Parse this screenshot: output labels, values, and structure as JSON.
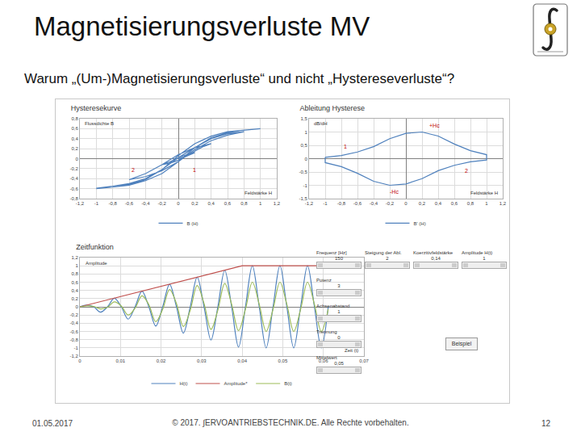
{
  "slide": {
    "title": "Magnetisierungsverluste MV",
    "question": "Warum „(Um-)Magnetisierungsverluste“ und nicht „Hystereseverluste“?",
    "date": "01.05.2017",
    "footer": "© 2017. ∫ERVOANTRIEBSTECHNIK.DE. Alle Rechte vorbehalten.",
    "page": "12"
  },
  "controls": [
    {
      "label": "Frequenz [Hz]",
      "value": "150"
    },
    {
      "label": "Steigung der Abl.",
      "value": "2"
    },
    {
      "label": "Koerzitivfeldstärke",
      "value": "0,14"
    },
    {
      "label": "Amplitude H(t)",
      "value": "1"
    },
    {
      "label": "Potenz",
      "value": "3"
    },
    {
      "label": "Achsenabstand",
      "value": "1"
    },
    {
      "label": "Trennung",
      "value": "0"
    },
    {
      "label": "Mittelwert",
      "value": "0,05"
    }
  ],
  "button": "Beispiel",
  "chart_data": [
    {
      "type": "line",
      "title": "Hysteresekurve",
      "xlabel": "Feldstärke H",
      "ylabel": "Flussdichte B",
      "xlim": [
        -1.2,
        1.2
      ],
      "xticks": [
        {
          "value": -1.2,
          "label": "-1,2"
        },
        -1,
        {
          "value": -0.8,
          "label": "-0,8"
        },
        {
          "value": -0.6,
          "label": "-0,6"
        },
        {
          "value": -0.4,
          "label": "-0,4"
        },
        {
          "value": -0.2,
          "label": "-0,2"
        },
        0,
        {
          "value": 0.2,
          "label": "0,2"
        },
        {
          "value": 0.4,
          "label": "0,4"
        },
        {
          "value": 0.6,
          "label": "0,6"
        },
        {
          "value": 0.8,
          "label": "0,8"
        },
        1,
        {
          "value": 1.2,
          "label": "1,2"
        }
      ],
      "ylim": [
        -0.8,
        0.8
      ],
      "yticks": [
        {
          "value": -0.8,
          "label": "-0,8"
        },
        {
          "value": -0.6,
          "label": "-0,6"
        },
        {
          "value": -0.4,
          "label": "-0,4"
        },
        {
          "value": -0.2,
          "label": "-0,2"
        },
        0,
        {
          "value": 0.2,
          "label": "0,2"
        },
        {
          "value": 0.4,
          "label": "0,4"
        },
        {
          "value": 0.6,
          "label": "0,6"
        },
        {
          "value": 0.8,
          "label": "0,8"
        }
      ],
      "grid": true,
      "legend": "bottom",
      "series": [
        {
          "name": "B (H)",
          "color": "#4f81bd",
          "x": [
            0,
            0.1,
            0.2,
            0.1,
            0,
            -0.1,
            -0.2,
            -0.1,
            0,
            0.1,
            0.2,
            0.3,
            0.4,
            0.2,
            0,
            -0.2,
            -0.4,
            -0.6,
            -0.4,
            -0.2,
            0,
            0.2,
            0.4,
            0.6,
            0.8,
            0.6,
            0.4,
            0.2,
            0,
            -0.2,
            -0.4,
            -0.6,
            -0.8,
            -1,
            -0.8,
            -0.6,
            -0.4,
            -0.2,
            0,
            0.2,
            0.4,
            0.6,
            0.8,
            1,
            0.8,
            0.6,
            0.4,
            0.2,
            0,
            -0.2,
            -0.4,
            -0.6,
            -0.8,
            -1
          ],
          "values": [
            0,
            0.05,
            0.12,
            0.08,
            0.02,
            -0.06,
            -0.12,
            -0.09,
            -0.03,
            0.05,
            0.15,
            0.24,
            0.3,
            0.22,
            0.08,
            -0.12,
            -0.3,
            -0.42,
            -0.36,
            -0.24,
            -0.06,
            0.18,
            0.36,
            0.47,
            0.54,
            0.5,
            0.4,
            0.22,
            0.02,
            -0.22,
            -0.4,
            -0.5,
            -0.55,
            -0.59,
            -0.57,
            -0.53,
            -0.44,
            -0.3,
            -0.06,
            0.22,
            0.42,
            0.52,
            0.57,
            0.6,
            0.58,
            0.54,
            0.45,
            0.3,
            0.06,
            -0.22,
            -0.42,
            -0.52,
            -0.57,
            -0.6
          ]
        }
      ],
      "annotations": [
        {
          "x": -0.55,
          "y": -0.22,
          "text": "2",
          "color": "#c00000"
        },
        {
          "x": 0.2,
          "y": -0.22,
          "text": "1",
          "color": "#c00000"
        }
      ]
    },
    {
      "type": "line",
      "title": "Ableitung Hysterese",
      "xlabel": "Feldstärke H",
      "ylabel": "dB/dH",
      "xlim": [
        -1.2,
        1.2
      ],
      "xticks": [
        {
          "value": -1.2,
          "label": "-1,2"
        },
        -1,
        {
          "value": -0.8,
          "label": "-0,8"
        },
        {
          "value": -0.6,
          "label": "-0,6"
        },
        {
          "value": -0.4,
          "label": "-0,4"
        },
        {
          "value": -0.2,
          "label": "-0,2"
        },
        0,
        {
          "value": 0.2,
          "label": "0,2"
        },
        {
          "value": 0.4,
          "label": "0,4"
        },
        {
          "value": 0.6,
          "label": "0,6"
        },
        {
          "value": 0.8,
          "label": "0,8"
        },
        1,
        {
          "value": 1.2,
          "label": "1,2"
        }
      ],
      "ylim": [
        -1.5,
        1.5
      ],
      "yticks": [
        {
          "value": -1.5,
          "label": "-1,5"
        },
        -1,
        {
          "value": -0.5,
          "label": "-0,5"
        },
        0,
        {
          "value": 0.5,
          "label": "0,5"
        },
        1,
        {
          "value": 1.5,
          "label": "1,5"
        }
      ],
      "grid": true,
      "legend": "bottom",
      "series": [
        {
          "name": "B' (H)",
          "color": "#4f81bd",
          "x": [
            -1,
            -0.8,
            -0.6,
            -0.4,
            -0.2,
            0,
            0.2,
            0.4,
            0.6,
            0.8,
            1,
            1,
            1,
            0.8,
            0.6,
            0.4,
            0.2,
            0,
            -0.2,
            -0.4,
            -0.6,
            -0.8,
            -1,
            -1
          ],
          "values": [
            0.05,
            0.12,
            0.25,
            0.45,
            0.75,
            0.95,
            1,
            0.85,
            0.55,
            0.3,
            0.15,
            0,
            -0.05,
            -0.12,
            -0.25,
            -0.45,
            -0.75,
            -0.95,
            -1,
            -0.85,
            -0.55,
            -0.3,
            -0.15,
            0.05
          ]
        }
      ],
      "annotations": [
        {
          "x": -0.75,
          "y": 0.45,
          "text": "1",
          "color": "#c00000"
        },
        {
          "x": 0.75,
          "y": -0.45,
          "text": "2",
          "color": "#c00000"
        },
        {
          "x": 0.35,
          "y": 1.25,
          "text": "+Hc",
          "color": "#c00000"
        },
        {
          "x": -0.15,
          "y": -1.25,
          "text": "-Hc",
          "color": "#c00000"
        }
      ]
    },
    {
      "type": "line",
      "title": "Zeitfunktion",
      "xlabel": "Zeit (t)",
      "ylabel": "Amplitude",
      "xlim": [
        0,
        0.07
      ],
      "xticks": [
        0,
        {
          "value": 0.01,
          "label": "0,01"
        },
        {
          "value": 0.02,
          "label": "0,02"
        },
        {
          "value": 0.03,
          "label": "0,03"
        },
        {
          "value": 0.04,
          "label": "0,04"
        },
        {
          "value": 0.05,
          "label": "0,05"
        },
        {
          "value": 0.06,
          "label": "0,06"
        },
        {
          "value": 0.07,
          "label": "0,07"
        }
      ],
      "ylim": [
        -1.2,
        1.2
      ],
      "yticks": [
        {
          "value": -1.2,
          "label": "-1,2"
        },
        -1,
        {
          "value": -0.8,
          "label": "-0,8"
        },
        {
          "value": -0.6,
          "label": "-0,6"
        },
        {
          "value": -0.4,
          "label": "-0,4"
        },
        {
          "value": -0.2,
          "label": "-0,2"
        },
        0,
        {
          "value": 0.2,
          "label": "0,2"
        },
        {
          "value": 0.4,
          "label": "0,4"
        },
        {
          "value": 0.6,
          "label": "0,6"
        },
        {
          "value": 0.8,
          "label": "0,8"
        },
        1,
        {
          "value": 1.2,
          "label": "1,2"
        }
      ],
      "grid": true,
      "legend": "bottom",
      "series": [
        {
          "name": "H(t)",
          "color": "#4f81bd",
          "line_style": "smooth",
          "x": [
            0,
            0.0017,
            0.0034,
            0.0051,
            0.0068,
            0.0085,
            0.0102,
            0.0119,
            0.0136,
            0.0153,
            0.017,
            0.0187,
            0.0204,
            0.0221,
            0.0238,
            0.0255,
            0.0272,
            0.0289,
            0.0306,
            0.0323,
            0.034,
            0.0357,
            0.0374,
            0.0391,
            0.0408,
            0.0425,
            0.0442,
            0.0459,
            0.0476,
            0.0493,
            0.051,
            0.0527,
            0.0544,
            0.0561,
            0.0578,
            0.0595,
            0.0612
          ],
          "values": [
            0,
            0.04,
            0,
            -0.13,
            0,
            0.21,
            0,
            -0.3,
            0,
            0.38,
            0,
            -0.47,
            0,
            0.55,
            0,
            -0.64,
            0,
            0.72,
            0,
            -0.81,
            0,
            0.89,
            0,
            -0.98,
            0,
            1,
            0,
            -1,
            0,
            1,
            0,
            -1,
            0,
            1,
            0,
            -1,
            0
          ]
        },
        {
          "name": "Amplitude*",
          "color": "#c0504d",
          "line_style": "solid",
          "x": [
            0,
            0.04,
            0.06
          ],
          "values": [
            0,
            1,
            1
          ]
        },
        {
          "name": "B(t)",
          "color": "#9bbb59",
          "line_style": "smooth",
          "x": [
            0,
            0.0017,
            0.0034,
            0.0051,
            0.0068,
            0.0085,
            0.0102,
            0.0119,
            0.0136,
            0.0153,
            0.017,
            0.0187,
            0.0204,
            0.0221,
            0.0238,
            0.0255,
            0.0272,
            0.0289,
            0.0306,
            0.0323,
            0.034,
            0.0357,
            0.0374,
            0.0391,
            0.0408,
            0.0425,
            0.0442,
            0.0459,
            0.0476,
            0.0493,
            0.051,
            0.0527,
            0.0544,
            0.0561,
            0.0578,
            0.0595,
            0.0612
          ],
          "values": [
            0,
            0.02,
            0.01,
            -0.05,
            -0.01,
            0.12,
            0.02,
            -0.2,
            -0.03,
            0.27,
            0.05,
            -0.36,
            -0.06,
            0.42,
            0.08,
            -0.48,
            -0.08,
            0.52,
            0.08,
            -0.55,
            -0.08,
            0.57,
            0.06,
            -0.58,
            -0.06,
            0.6,
            0.06,
            -0.6,
            -0.06,
            0.6,
            0.06,
            -0.6,
            -0.06,
            0.6,
            0.06,
            -0.6,
            -0.06
          ]
        }
      ],
      "annotations": []
    }
  ]
}
